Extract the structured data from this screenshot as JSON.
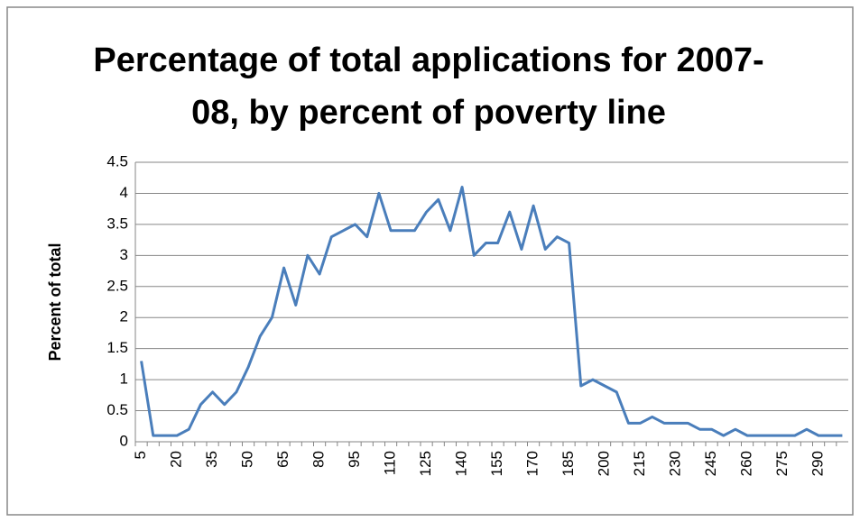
{
  "chart_data": {
    "type": "line",
    "title": "Percentage of total applications for 2007-08, by percent of poverty line",
    "y_label": "Percent of total",
    "categories": [
      5,
      null,
      null,
      20,
      null,
      null,
      35,
      null,
      null,
      50,
      null,
      null,
      65,
      null,
      null,
      80,
      null,
      null,
      95,
      null,
      null,
      110,
      null,
      null,
      125,
      null,
      null,
      140,
      null,
      null,
      155,
      null,
      null,
      170,
      null,
      null,
      185,
      null,
      null,
      200,
      null,
      null,
      215,
      null,
      null,
      230,
      null,
      null,
      245,
      null,
      null,
      260,
      null,
      null,
      275,
      null,
      null,
      290,
      null,
      null
    ],
    "series": [
      {
        "name": "Percent of total",
        "color": "#4a7ebb",
        "values": [
          1.3,
          0.1,
          0.1,
          0.1,
          0.2,
          0.6,
          0.8,
          0.6,
          0.8,
          1.2,
          1.7,
          2.0,
          2.8,
          2.2,
          3.0,
          2.7,
          3.3,
          3.4,
          3.5,
          3.3,
          4.0,
          3.4,
          3.4,
          3.4,
          3.7,
          3.9,
          3.4,
          4.1,
          3.0,
          3.2,
          3.2,
          3.7,
          3.1,
          3.8,
          3.1,
          3.3,
          3.2,
          0.9,
          1.0,
          0.9,
          0.8,
          0.3,
          0.3,
          0.4,
          0.3,
          0.3,
          0.3,
          0.2,
          0.2,
          0.1,
          0.2,
          0.1,
          0.1,
          0.1,
          0.1,
          0.1,
          0.2,
          0.1,
          0.1,
          0.1
        ]
      }
    ],
    "ylim": [
      0,
      4.5
    ],
    "yticks": [
      0,
      0.5,
      1,
      1.5,
      2,
      2.5,
      3,
      3.5,
      4,
      4.5
    ],
    "grid": true
  }
}
